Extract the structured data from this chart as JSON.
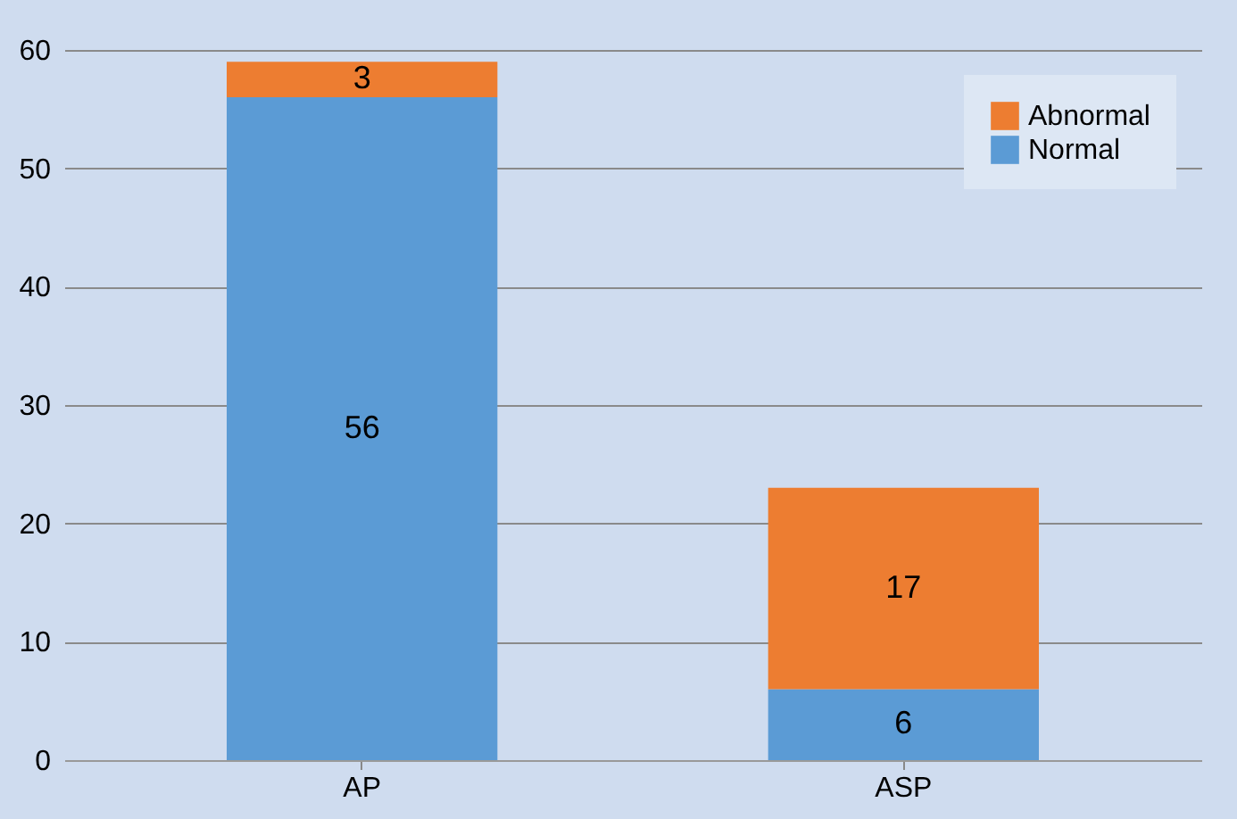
{
  "chart_data": {
    "type": "bar",
    "stacked": true,
    "categories": [
      "AP",
      "ASP"
    ],
    "series": [
      {
        "name": "Normal",
        "color": "#5b9bd5",
        "values": [
          56,
          6
        ]
      },
      {
        "name": "Abnormal",
        "color": "#ed7d31",
        "values": [
          3,
          17
        ]
      }
    ],
    "ylim": [
      0,
      60
    ],
    "yticks": [
      0,
      10,
      20,
      30,
      40,
      50,
      60
    ],
    "grid": "y",
    "legend": "top right",
    "data_labels": true
  }
}
